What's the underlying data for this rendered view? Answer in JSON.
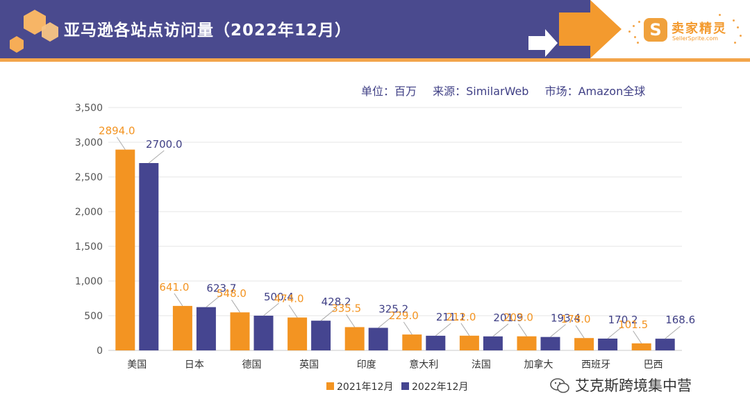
{
  "header": {
    "title": "亚马逊各站点访问量（2022年12月）"
  },
  "logo": {
    "badge_icon": "s-badge-icon",
    "name": "卖家精灵",
    "sub": "SellerSprite.com"
  },
  "units": {
    "unit": "单位：百万",
    "source": "来源：SimilarWeb",
    "market": "市场：Amazon全球"
  },
  "watermark": {
    "icon": "wechat-icon",
    "text": "艾克斯跨境集中营"
  },
  "colors": {
    "band": "#4a4a8e",
    "accent": "#f3a54a",
    "series_2021": "#f39422",
    "series_2022": "#454590"
  },
  "chart_data": {
    "type": "bar",
    "title": "",
    "xlabel": "",
    "ylabel": "",
    "ylim": [
      0,
      3500
    ],
    "yticks": [
      "0",
      "500",
      "1,000",
      "1,500",
      "2,000",
      "2,500",
      "3,000",
      "3,500"
    ],
    "grid": true,
    "legend_position": "bottom",
    "categories": [
      "美国",
      "日本",
      "德国",
      "英国",
      "印度",
      "意大利",
      "法国",
      "加拿大",
      "西班牙",
      "巴西"
    ],
    "series": [
      {
        "name": "2021年12月",
        "values": [
          2894.0,
          641.0,
          548.0,
          474.0,
          335.5,
          229.0,
          212.0,
          203.0,
          178.0,
          101.5
        ],
        "labels": [
          "2894.0",
          "641.0",
          "548.0",
          "474.0",
          "335.5",
          "229.0",
          "212.0",
          "203.0",
          "178.0",
          "101.5"
        ]
      },
      {
        "name": "2022年12月",
        "values": [
          2700.0,
          623.7,
          500.4,
          428.2,
          325.2,
          211.1,
          201.9,
          193.4,
          170.2,
          168.6
        ],
        "labels": [
          "2700.0",
          "623.7",
          "500.4",
          "428.2",
          "325.2",
          "211.1",
          "201.9",
          "193.4",
          "170.2",
          "168.6"
        ]
      }
    ]
  }
}
